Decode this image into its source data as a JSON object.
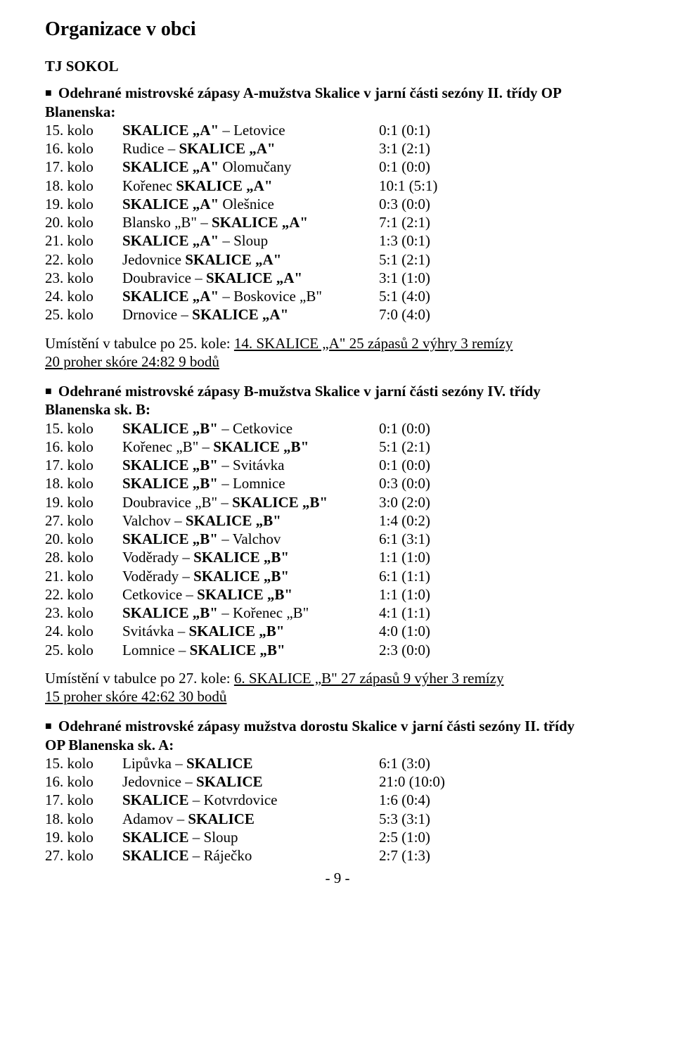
{
  "page": {
    "title": "Organizace v obci",
    "club": "TJ SOKOL",
    "pageNumber": "- 9 -"
  },
  "sectionA": {
    "lead_prefix": "Odehrané mistrovské zápasy A-mužstva Skalice v jarní části sezóny II. třídy OP",
    "lead_line2": "Blanenska:",
    "matches": [
      {
        "round": "15. kolo",
        "teams": "SKALICE „A\" – Letovice",
        "score": "0:1 (0:1)"
      },
      {
        "round": "16. kolo",
        "teams": "Rudice – SKALICE „A\"",
        "score": "3:1 (2:1)"
      },
      {
        "round": "17. kolo",
        "teams": "SKALICE „A\" Olomučany",
        "score": "0:1 (0:0)"
      },
      {
        "round": "18. kolo",
        "teams": "Kořenec SKALICE „A\"",
        "score": "10:1 (5:1)"
      },
      {
        "round": "19. kolo",
        "teams": "SKALICE „A\" Olešnice",
        "score": "0:3 (0:0)"
      },
      {
        "round": "20. kolo",
        "teams": "Blansko „B\" – SKALICE „A\"",
        "score": "7:1 (2:1)"
      },
      {
        "round": "21. kolo",
        "teams": "SKALICE „A\" – Sloup",
        "score": "1:3 (0:1)"
      },
      {
        "round": "22. kolo",
        "teams": "Jedovnice SKALICE „A\"",
        "score": "5:1 (2:1)"
      },
      {
        "round": "23. kolo",
        "teams": "Doubravice – SKALICE „A\"",
        "score": "3:1 (1:0)"
      },
      {
        "round": "24. kolo",
        "teams": "SKALICE „A\" – Boskovice „B\"",
        "score": "5:1 (4:0)"
      },
      {
        "round": "25. kolo",
        "teams": "Drnovice – SKALICE „A\"",
        "score": "7:0 (4:0)"
      }
    ],
    "summary_prefix": "Umístění v tabulce po 25. kole:  ",
    "summary_underline1": "14. SKALICE „A\"   25 zápasů   2 výhry   3 remízy",
    "summary_underline2": "20 proher   skóre 24:82   9 bodů"
  },
  "sectionB": {
    "lead_prefix": "Odehrané mistrovské zápasy B-mužstva Skalice v jarní části sezóny IV. třídy",
    "lead_line2": "Blanenska sk. B:",
    "matches": [
      {
        "round": "15. kolo",
        "teams": "SKALICE „B\" – Cetkovice",
        "score": "0:1 (0:0)"
      },
      {
        "round": "16. kolo",
        "teams": "Kořenec „B\" – SKALICE „B\"",
        "score": "5:1 (2:1)"
      },
      {
        "round": "17. kolo",
        "teams": "SKALICE „B\" – Svitávka",
        "score": "0:1 (0:0)"
      },
      {
        "round": "18. kolo",
        "teams": "SKALICE „B\" – Lomnice",
        "score": "0:3 (0:0)"
      },
      {
        "round": "19. kolo",
        "teams": "Doubravice „B\" – SKALICE „B\"",
        "score": "3:0 (2:0)"
      },
      {
        "round": "27. kolo",
        "teams": "Valchov – SKALICE „B\"",
        "score": "1:4 (0:2)"
      },
      {
        "round": "20. kolo",
        "teams": "SKALICE „B\" – Valchov",
        "score": "6:1 (3:1)"
      },
      {
        "round": "28. kolo",
        "teams": "Voděrady – SKALICE „B\"",
        "score": "1:1 (1:0)"
      },
      {
        "round": "21. kolo",
        "teams": "Voděrady – SKALICE „B\"",
        "score": "6:1 (1:1)"
      },
      {
        "round": "22. kolo",
        "teams": "Cetkovice – SKALICE „B\"",
        "score": "1:1 (1:0)"
      },
      {
        "round": "23. kolo",
        "teams": "SKALICE „B\" – Kořenec „B\"",
        "score": "4:1 (1:1)"
      },
      {
        "round": "24. kolo",
        "teams": "Svitávka – SKALICE „B\"",
        "score": "4:0 (1:0)"
      },
      {
        "round": "25. kolo",
        "teams": "Lomnice – SKALICE „B\"",
        "score": "2:3 (0:0)"
      }
    ],
    "summary_prefix": "Umístění v tabulce po 27. kole:  ",
    "summary_underline1": "6. SKALICE „B\"   27 zápasů   9 výher   3 remízy",
    "summary_underline2": "15 proher   skóre 42:62   30 bodů"
  },
  "sectionDorost": {
    "lead_prefix": "Odehrané mistrovské zápasy mužstva dorostu Skalice v jarní části sezóny II. třídy",
    "lead_line2": "OP Blanenska sk. A:",
    "matches": [
      {
        "round": "15. kolo",
        "teams": "Lipůvka – SKALICE",
        "score": "6:1 (3:0)"
      },
      {
        "round": "16. kolo",
        "teams": "Jedovnice – SKALICE",
        "score": "21:0 (10:0)"
      },
      {
        "round": "17. kolo",
        "teams": "SKALICE – Kotvrdovice",
        "score": "1:6 (0:4)"
      },
      {
        "round": "18. kolo",
        "teams": "Adamov – SKALICE",
        "score": "5:3 (3:1)"
      },
      {
        "round": "19. kolo",
        "teams": "SKALICE – Sloup",
        "score": "2:5 (1:0)"
      },
      {
        "round": "27. kolo",
        "teams": "SKALICE – Ráječko",
        "score": "2:7 (1:3)"
      }
    ]
  },
  "boldMap": {
    "SKALICE „A\" – Letovice": "<b>SKALICE „A\"</b> – Letovice",
    "Rudice – SKALICE „A\"": "Rudice – <b>SKALICE „A\"</b>",
    "SKALICE „A\" Olomučany": "<b>SKALICE „A\"</b> Olomučany",
    "Kořenec SKALICE „A\"": "Kořenec <b>SKALICE „A\"</b>",
    "SKALICE „A\" Olešnice": "<b>SKALICE „A\"</b> Olešnice",
    "Blansko „B\" – SKALICE „A\"": "Blansko „B\" – <b>SKALICE „A\"</b>",
    "SKALICE „A\" – Sloup": "<b>SKALICE „A\"</b> – Sloup",
    "Jedovnice SKALICE „A\"": "Jedovnice <b>SKALICE „A\"</b>",
    "Doubravice – SKALICE „A\"": "Doubravice – <b>SKALICE „A\"</b>",
    "SKALICE „A\" – Boskovice „B\"": "<b>SKALICE „A\"</b> – Boskovice „B\"",
    "Drnovice – SKALICE „A\"": "Drnovice – <b>SKALICE „A\"</b>",
    "SKALICE „B\" – Cetkovice": "<b>SKALICE „B\"</b> – Cetkovice",
    "Kořenec „B\" – SKALICE „B\"": "Kořenec „B\" – <b>SKALICE „B\"</b>",
    "SKALICE „B\" – Svitávka": "<b>SKALICE „B\"</b> – Svitávka",
    "SKALICE „B\" – Lomnice": "<b>SKALICE „B\"</b> – Lomnice",
    "Doubravice „B\" – SKALICE „B\"": "Doubravice „B\" – <b>SKALICE „B\"</b>",
    "Valchov – SKALICE „B\"": "Valchov – <b>SKALICE „B\"</b>",
    "SKALICE „B\" – Valchov": "<b>SKALICE „B\"</b> – Valchov",
    "Voděrady – SKALICE „B\"": "Voděrady – <b>SKALICE „B\"</b>",
    "Cetkovice – SKALICE „B\"": "Cetkovice – <b>SKALICE „B\"</b>",
    "SKALICE „B\" – Kořenec „B\"": "<b>SKALICE „B\"</b> – Kořenec „B\"",
    "Svitávka – SKALICE „B\"": "Svitávka – <b>SKALICE „B\"</b>",
    "Lomnice – SKALICE „B\"": "Lomnice – <b>SKALICE „B\"</b>",
    "Lipůvka – SKALICE": "Lipůvka – <b>SKALICE</b>",
    "Jedovnice – SKALICE": "Jedovnice – <b>SKALICE</b>",
    "SKALICE – Kotvrdovice": "<b>SKALICE</b> – Kotvrdovice",
    "Adamov – SKALICE": "Adamov – <b>SKALICE</b>",
    "SKALICE – Sloup": "<b>SKALICE</b> – Sloup",
    "SKALICE – Ráječko": "<b>SKALICE</b> – Ráječko"
  }
}
